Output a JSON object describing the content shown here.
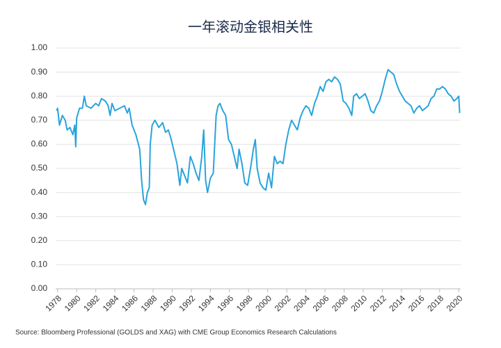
{
  "chart_data": {
    "type": "line",
    "title": "一年滚动金银相关性",
    "source": "Source: Bloomberg Professional (GOLDS and XAG) with CME Group Economics Research Calculations",
    "color": "#29a3dc",
    "grid": true,
    "xlim": [
      1977.8,
      2020.2
    ],
    "xticks": [
      1978,
      1980,
      1982,
      1984,
      1986,
      1988,
      1990,
      1992,
      1994,
      1996,
      1998,
      2000,
      2002,
      2004,
      2006,
      2008,
      2010,
      2012,
      2014,
      2016,
      2018,
      2020
    ],
    "ylim": [
      0,
      1
    ],
    "yticks": [
      {
        "value": 0,
        "label": "0.00"
      },
      {
        "value": 0.1,
        "label": "0.10"
      },
      {
        "value": 0.2,
        "label": "0.20"
      },
      {
        "value": 0.3,
        "label": "0.30"
      },
      {
        "value": 0.4,
        "label": "0.40"
      },
      {
        "value": 0.5,
        "label": "0.50"
      },
      {
        "value": 0.6,
        "label": "0.60"
      },
      {
        "value": 0.7,
        "label": "0.70"
      },
      {
        "value": 0.8,
        "label": "0.80"
      },
      {
        "value": 0.9,
        "label": "0.90"
      },
      {
        "value": 1,
        "label": "1.00"
      }
    ],
    "x": [
      1977.9,
      1978.0,
      1978.2,
      1978.5,
      1978.8,
      1979.0,
      1979.3,
      1979.6,
      1979.8,
      1979.9,
      1980.0,
      1980.3,
      1980.6,
      1980.8,
      1981.0,
      1981.5,
      1982.0,
      1982.3,
      1982.6,
      1983.0,
      1983.3,
      1983.5,
      1983.7,
      1984.0,
      1984.5,
      1985.0,
      1985.3,
      1985.5,
      1985.8,
      1986.2,
      1986.6,
      1986.8,
      1987.0,
      1987.2,
      1987.4,
      1987.6,
      1987.7,
      1987.9,
      1988.2,
      1988.6,
      1989.0,
      1989.3,
      1989.6,
      1989.9,
      1990.2,
      1990.5,
      1990.8,
      1991.0,
      1991.3,
      1991.6,
      1991.9,
      1992.2,
      1992.5,
      1992.8,
      1993.1,
      1993.3,
      1993.5,
      1993.7,
      1994.0,
      1994.3,
      1994.6,
      1994.8,
      1995.0,
      1995.3,
      1995.6,
      1995.9,
      1996.2,
      1996.5,
      1996.8,
      1997.0,
      1997.3,
      1997.6,
      1997.9,
      1998.2,
      1998.5,
      1998.7,
      1998.9,
      1999.2,
      1999.5,
      1999.8,
      2000.1,
      2000.4,
      2000.7,
      2001.0,
      2001.3,
      2001.6,
      2001.9,
      2002.2,
      2002.5,
      2002.8,
      2003.1,
      2003.4,
      2003.7,
      2004.0,
      2004.3,
      2004.6,
      2004.9,
      2005.2,
      2005.5,
      2005.8,
      2006.1,
      2006.4,
      2006.7,
      2007.0,
      2007.3,
      2007.6,
      2007.9,
      2008.2,
      2008.5,
      2008.8,
      2009.0,
      2009.3,
      2009.6,
      2009.9,
      2010.2,
      2010.5,
      2010.8,
      2011.1,
      2011.4,
      2011.7,
      2012.0,
      2012.3,
      2012.6,
      2012.9,
      2013.2,
      2013.5,
      2013.8,
      2014.1,
      2014.4,
      2014.7,
      2015.0,
      2015.3,
      2015.6,
      2015.9,
      2016.2,
      2016.5,
      2016.8,
      2017.1,
      2017.4,
      2017.7,
      2018.0,
      2018.3,
      2018.6,
      2018.9,
      2019.2,
      2019.5,
      2019.8,
      2020.0,
      2020.1
    ],
    "values": [
      0.74,
      0.75,
      0.68,
      0.72,
      0.7,
      0.66,
      0.67,
      0.64,
      0.68,
      0.59,
      0.71,
      0.75,
      0.75,
      0.8,
      0.76,
      0.75,
      0.77,
      0.76,
      0.79,
      0.78,
      0.76,
      0.72,
      0.77,
      0.74,
      0.75,
      0.76,
      0.73,
      0.75,
      0.68,
      0.64,
      0.58,
      0.45,
      0.37,
      0.35,
      0.4,
      0.42,
      0.6,
      0.68,
      0.7,
      0.67,
      0.69,
      0.65,
      0.66,
      0.62,
      0.57,
      0.52,
      0.43,
      0.5,
      0.47,
      0.44,
      0.55,
      0.52,
      0.48,
      0.45,
      0.55,
      0.66,
      0.45,
      0.4,
      0.46,
      0.48,
      0.72,
      0.76,
      0.77,
      0.74,
      0.72,
      0.62,
      0.6,
      0.55,
      0.5,
      0.58,
      0.52,
      0.44,
      0.43,
      0.5,
      0.58,
      0.62,
      0.5,
      0.44,
      0.42,
      0.41,
      0.48,
      0.42,
      0.55,
      0.52,
      0.53,
      0.52,
      0.6,
      0.66,
      0.7,
      0.68,
      0.66,
      0.71,
      0.74,
      0.76,
      0.75,
      0.72,
      0.77,
      0.8,
      0.84,
      0.82,
      0.86,
      0.87,
      0.86,
      0.88,
      0.87,
      0.85,
      0.78,
      0.77,
      0.75,
      0.72,
      0.8,
      0.81,
      0.79,
      0.8,
      0.81,
      0.78,
      0.74,
      0.73,
      0.76,
      0.78,
      0.82,
      0.87,
      0.91,
      0.9,
      0.89,
      0.85,
      0.82,
      0.8,
      0.78,
      0.77,
      0.76,
      0.73,
      0.75,
      0.76,
      0.74,
      0.75,
      0.76,
      0.79,
      0.8,
      0.83,
      0.83,
      0.84,
      0.83,
      0.81,
      0.8,
      0.78,
      0.79,
      0.8,
      0.73
    ]
  }
}
